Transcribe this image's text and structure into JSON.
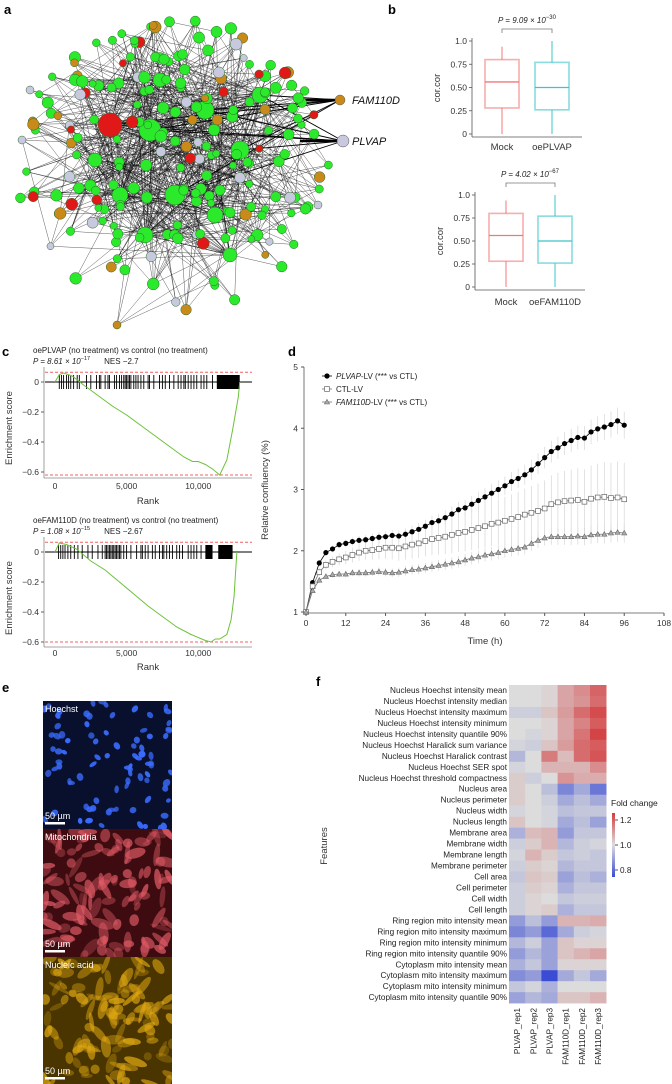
{
  "panels": {
    "a": "a",
    "b": "b",
    "c": "c",
    "d": "d",
    "e": "e",
    "f": "f"
  },
  "network": {
    "highlight_labels": [
      "FAM110D",
      "PLVAP"
    ],
    "colors": {
      "gene": "#2bea2b",
      "red": "#e01818",
      "orange": "#c98a1a",
      "gray": "#c8c8de"
    }
  },
  "boxplots": [
    {
      "p_text": "P = 9.09 × 10",
      "p_exp": "−30",
      "ylabel": "cor.cor",
      "yticks": [
        "0",
        "0.25",
        "0.50",
        "0.75",
        "1.0"
      ],
      "groups": [
        {
          "name": "Mock",
          "min": 0,
          "q1": 0.28,
          "median": 0.56,
          "q3": 0.8,
          "max": 0.94,
          "color": "#f07878"
        },
        {
          "name": "oePLVAP",
          "min": 0,
          "q1": 0.26,
          "median": 0.5,
          "q3": 0.77,
          "max": 1.0,
          "color": "#3cc4c8"
        }
      ]
    },
    {
      "p_text": "P = 4.02 × 10",
      "p_exp": "−67",
      "ylabel": "cor.cor",
      "yticks": [
        "0",
        "0.25",
        "0.50",
        "0.75",
        "1.0"
      ],
      "groups": [
        {
          "name": "Mock",
          "min": 0,
          "q1": 0.28,
          "median": 0.56,
          "q3": 0.8,
          "max": 0.94,
          "color": "#f07878"
        },
        {
          "name": "oeFAM110D",
          "min": 0,
          "q1": 0.26,
          "median": 0.5,
          "q3": 0.77,
          "max": 1.0,
          "color": "#3cc4c8"
        }
      ]
    }
  ],
  "gsea": [
    {
      "title": "oePLVAP (no treatment) vs control (no treatment)",
      "p_text": "P = 8.61 × 10",
      "p_exp": "−17",
      "nes": "NES −2.7",
      "ylabel": "Enrichment score",
      "xlabel": "Rank",
      "yticks": [
        "0",
        "−0.2",
        "−0.4",
        "−0.6"
      ],
      "xticks": [
        "0",
        "5,000",
        "10,000"
      ],
      "max_rank": 12900,
      "es_max": 0.065,
      "es_min": -0.62,
      "curve": [
        [
          0,
          0
        ],
        [
          300,
          0.05
        ],
        [
          600,
          0.06
        ],
        [
          1200,
          0.04
        ],
        [
          2000,
          -0.02
        ],
        [
          3000,
          -0.09
        ],
        [
          4000,
          -0.16
        ],
        [
          5000,
          -0.22
        ],
        [
          6000,
          -0.29
        ],
        [
          7000,
          -0.36
        ],
        [
          8000,
          -0.43
        ],
        [
          9000,
          -0.5
        ],
        [
          9600,
          -0.53
        ],
        [
          10000,
          -0.53
        ],
        [
          10500,
          -0.55
        ],
        [
          11000,
          -0.58
        ],
        [
          11500,
          -0.62
        ],
        [
          12000,
          -0.52
        ],
        [
          12400,
          -0.32
        ],
        [
          12800,
          -0.1
        ],
        [
          12900,
          0
        ]
      ],
      "hits": [
        300,
        450,
        600,
        800,
        950,
        1100,
        1300,
        1550,
        1700,
        2200,
        2500,
        2900,
        3100,
        3200,
        3500,
        3700,
        3800,
        4150,
        4300,
        4500,
        4650,
        4800,
        4900,
        5000,
        5100,
        5200,
        5300,
        5500,
        5650,
        5800,
        6000,
        6200,
        6500,
        6600,
        6900,
        7300,
        7500,
        7700,
        8000,
        8300,
        8600,
        8800,
        9000,
        9100,
        9300,
        9500,
        9700,
        9900,
        10200,
        10400,
        10600,
        11000
      ],
      "dense_hits": [
        11300,
        12900
      ]
    },
    {
      "title": "oeFAM110D (no treatment) vs control (no treatment)",
      "p_text": "P = 1.08 × 10",
      "p_exp": "−15",
      "nes": "NES −2.67",
      "ylabel": "Enrichment score",
      "xlabel": "Rank",
      "yticks": [
        "0",
        "−0.2",
        "−0.4",
        "−0.6"
      ],
      "xticks": [
        "0",
        "5,000",
        "10,000"
      ],
      "max_rank": 12700,
      "es_max": 0.065,
      "es_min": -0.6,
      "curve": [
        [
          0,
          0
        ],
        [
          300,
          0.06
        ],
        [
          800,
          0.05
        ],
        [
          1500,
          0.02
        ],
        [
          2500,
          -0.06
        ],
        [
          3500,
          -0.12
        ],
        [
          4500,
          -0.2
        ],
        [
          5500,
          -0.28
        ],
        [
          6500,
          -0.36
        ],
        [
          7500,
          -0.43
        ],
        [
          8500,
          -0.5
        ],
        [
          9500,
          -0.55
        ],
        [
          10500,
          -0.59
        ],
        [
          10900,
          -0.6
        ],
        [
          11200,
          -0.58
        ],
        [
          11500,
          -0.58
        ],
        [
          12000,
          -0.55
        ],
        [
          12300,
          -0.45
        ],
        [
          12500,
          -0.3
        ],
        [
          12700,
          0
        ]
      ],
      "hits": [
        250,
        400,
        550,
        700,
        900,
        1100,
        1350,
        1600,
        1900,
        2300,
        2600,
        3000,
        3300,
        3500,
        3600,
        3700,
        3800,
        3900,
        4000,
        4100,
        4200,
        4300,
        4400,
        4500,
        4600,
        4800,
        5000,
        5300,
        5700,
        6000,
        6100,
        6300,
        6500,
        6800,
        7000,
        7300,
        7500,
        7600,
        7800,
        8000,
        8200,
        8500,
        8700,
        8900,
        9300,
        9500,
        9700,
        9900,
        10200
      ],
      "dense_hits": [
        10500,
        11000,
        11400,
        12400
      ]
    }
  ],
  "chart_data": [
    {
      "type": "line",
      "title": "",
      "xlabel": "Time (h)",
      "ylabel": "Relative confluency (%)",
      "xlim": [
        0,
        108
      ],
      "ylim": [
        1,
        5
      ],
      "xticks": [
        "0",
        "12",
        "24",
        "36",
        "48",
        "60",
        "72",
        "84",
        "96",
        "108"
      ],
      "yticks": [
        "1",
        "2",
        "3",
        "4",
        "5"
      ],
      "x_step_h": 2,
      "legend_position": "top-left",
      "series": [
        {
          "name_italic": "PLVAP",
          "name_rest": "-LV (*** vs CTL)",
          "marker": "filled-circle",
          "sd_end": 0.2,
          "values": [
            1,
            1.48,
            1.8,
            1.97,
            2.03,
            2.1,
            2.12,
            2.15,
            2.17,
            2.18,
            2.2,
            2.22,
            2.23,
            2.25,
            2.24,
            2.27,
            2.31,
            2.35,
            2.4,
            2.46,
            2.49,
            2.54,
            2.6,
            2.67,
            2.7,
            2.76,
            2.82,
            2.88,
            2.94,
            3.0,
            3.06,
            3.13,
            3.18,
            3.24,
            3.32,
            3.42,
            3.52,
            3.62,
            3.68,
            3.75,
            3.8,
            3.85,
            3.84,
            3.94,
            3.99,
            4.02,
            4.06,
            4.12,
            4.05
          ]
        },
        {
          "name_italic": "",
          "name_rest": "CTL-LV",
          "marker": "open-square",
          "sd_end": 0.62,
          "values": [
            1,
            1.42,
            1.65,
            1.77,
            1.82,
            1.86,
            1.89,
            1.93,
            1.97,
            2.0,
            2.01,
            2.03,
            2.05,
            2.05,
            2.04,
            2.07,
            2.1,
            2.12,
            2.16,
            2.19,
            2.21,
            2.23,
            2.26,
            2.29,
            2.31,
            2.34,
            2.37,
            2.4,
            2.44,
            2.46,
            2.49,
            2.52,
            2.55,
            2.59,
            2.62,
            2.65,
            2.69,
            2.76,
            2.79,
            2.81,
            2.82,
            2.83,
            2.8,
            2.85,
            2.87,
            2.88,
            2.86,
            2.87,
            2.84
          ]
        },
        {
          "name_italic": "FAM110D",
          "name_rest": "-LV (*** vs CTL)",
          "marker": "triangle",
          "sd_end": 0.13,
          "values": [
            1,
            1.35,
            1.52,
            1.58,
            1.61,
            1.62,
            1.62,
            1.64,
            1.64,
            1.64,
            1.65,
            1.66,
            1.65,
            1.64,
            1.65,
            1.67,
            1.69,
            1.7,
            1.72,
            1.74,
            1.76,
            1.78,
            1.8,
            1.82,
            1.85,
            1.88,
            1.9,
            1.93,
            1.95,
            1.97,
            2.0,
            2.02,
            2.04,
            2.06,
            2.12,
            2.17,
            2.21,
            2.23,
            2.23,
            2.23,
            2.23,
            2.24,
            2.23,
            2.26,
            2.27,
            2.27,
            2.29,
            2.3,
            2.29
          ]
        }
      ]
    },
    {
      "type": "heatmap",
      "ylabel": "Features",
      "legend_title": "Fold change",
      "legend_ticks": [
        "1.2",
        "1.0",
        "0.8"
      ],
      "vmin": 0.8,
      "vmax": 1.2,
      "columns": [
        "PLVAP_rep1",
        "PLVAP_rep2",
        "PLVAP_rep3",
        "FAM110D_rep1",
        "FAM110D_rep2",
        "FAM110D_rep3"
      ],
      "rows": [
        "Nucleus Hoechst intensity mean",
        "Nucleus Hoechst intensity median",
        "Nucleus Hoechst intensity maximum",
        "Nucleus Hoechst intensity minimum",
        "Nucleus Hoechst intensity quantile 90%",
        "Nucleus Hoechst Haralick sum variance",
        "Nucleus Hoechst Haralick contrast",
        "Nucleus Hoechst SER spot",
        "Nucleus Hoechst threshold compactness",
        "Nucleus area",
        "Nucleus perimeter",
        "Nucleus width",
        "Nucleus length",
        "Membrane area",
        "Membrane width",
        "Membrane length",
        "Membrane perimeter",
        "Cell area",
        "Cell perimeter",
        "Cell width",
        "Cell length",
        "Ring region mito intensity mean",
        "Ring region mito intensity maximum",
        "Ring region mito intensity minimum",
        "Ring region mito intensity quantile 90%",
        "Cytoplasm mito intensity mean",
        "Cytoplasm mito intensity maximum",
        "Cytoplasm mito intensity minimum",
        "Cytoplasm mito intensity quantile 90%"
      ],
      "values": [
        [
          1.0,
          1.0,
          1.01,
          1.07,
          1.1,
          1.15
        ],
        [
          1.0,
          1.0,
          1.01,
          1.07,
          1.09,
          1.14
        ],
        [
          0.98,
          0.98,
          1.03,
          1.08,
          1.14,
          1.18
        ],
        [
          1.0,
          1.0,
          1.01,
          1.07,
          1.11,
          1.16
        ],
        [
          1.0,
          0.99,
          1.01,
          1.07,
          1.13,
          1.19
        ],
        [
          0.99,
          0.98,
          1.03,
          1.08,
          1.14,
          1.16
        ],
        [
          0.95,
          1.0,
          1.12,
          1.04,
          1.14,
          1.17
        ],
        [
          0.99,
          1.0,
          1.05,
          1.05,
          1.05,
          1.1
        ],
        [
          1.02,
          0.98,
          1.0,
          1.09,
          1.06,
          1.06
        ],
        [
          1.02,
          1.0,
          0.96,
          0.88,
          0.93,
          0.86
        ],
        [
          1.02,
          1.0,
          0.98,
          0.93,
          0.96,
          0.93
        ],
        [
          0.99,
          1.0,
          0.99,
          0.96,
          0.97,
          0.97
        ],
        [
          1.03,
          1.0,
          0.99,
          0.93,
          0.96,
          0.92
        ],
        [
          0.94,
          1.04,
          1.05,
          0.91,
          0.97,
          0.97
        ],
        [
          0.98,
          1.02,
          1.05,
          0.95,
          0.98,
          0.99
        ],
        [
          0.99,
          1.05,
          1.02,
          0.97,
          0.98,
          0.97
        ],
        [
          0.98,
          1.02,
          1.01,
          0.95,
          0.97,
          0.97
        ],
        [
          0.97,
          1.03,
          1.02,
          0.92,
          0.96,
          0.94
        ],
        [
          0.98,
          1.02,
          1.01,
          0.94,
          0.97,
          0.97
        ],
        [
          0.98,
          1.01,
          1.0,
          0.97,
          0.98,
          0.98
        ],
        [
          0.98,
          1.01,
          1.02,
          0.94,
          0.97,
          0.97
        ],
        [
          0.91,
          0.96,
          0.91,
          1.05,
          1.05,
          1.06
        ],
        [
          0.88,
          0.91,
          0.84,
          0.93,
          0.98,
          0.99
        ],
        [
          0.95,
          0.98,
          0.92,
          1.03,
          1.01,
          1.01
        ],
        [
          0.91,
          0.95,
          0.92,
          1.03,
          1.05,
          1.07
        ],
        [
          0.94,
          0.97,
          0.92,
          1.01,
          1.01,
          1.01
        ],
        [
          0.89,
          0.91,
          0.78,
          0.93,
          0.97,
          0.93
        ],
        [
          0.97,
          0.99,
          0.94,
          1.0,
          1.0,
          1.0
        ],
        [
          0.92,
          0.95,
          0.93,
          1.03,
          1.03,
          1.05
        ]
      ]
    }
  ],
  "microscopy": [
    {
      "label": "Hoechst",
      "scale": "50 µm",
      "color": "#3a6cff",
      "bg": "#08102e"
    },
    {
      "label": "Mitochondria",
      "scale": "50 µm",
      "color": "#e05a66",
      "bg": "#3e0c10"
    },
    {
      "label": "Nucleic acid",
      "scale": "50 µm",
      "color": "#e0a812",
      "bg": "#4a3500"
    }
  ]
}
